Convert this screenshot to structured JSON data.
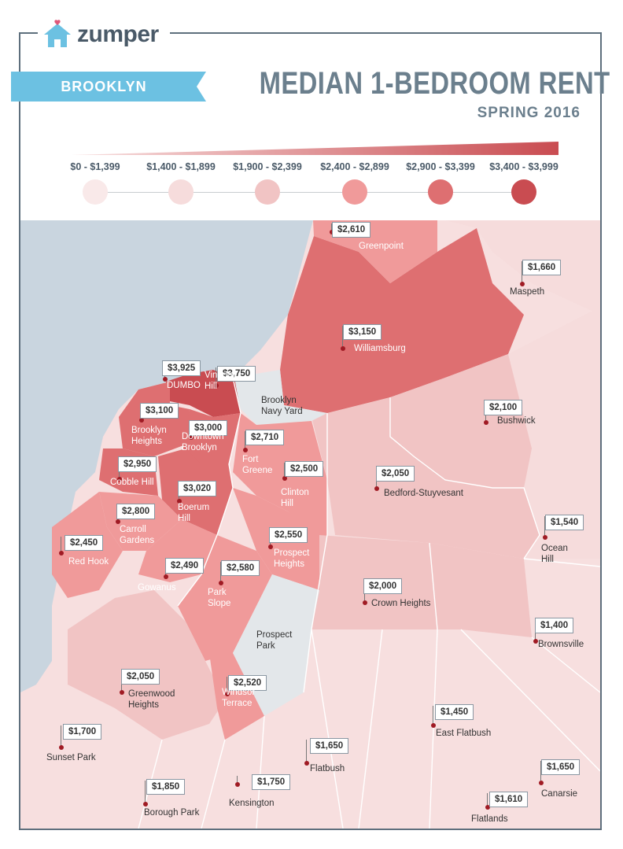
{
  "brand": {
    "name": "zumper"
  },
  "borough": "BROOKLYN",
  "title": "MEDIAN 1-BEDROOM RENT",
  "subtitle": "SPRING 2016",
  "colors": {
    "frame": "#5e6f7d",
    "ribbon": "#6cc1e2",
    "water": "#c9d5df",
    "park": "#e3e7ea",
    "title": "#6b7f8d"
  },
  "legend": [
    {
      "label": "$0 - $1,399",
      "color": "#f9e9e9"
    },
    {
      "label": "$1,400 - $1,899",
      "color": "#f6dcdc"
    },
    {
      "label": "$1,900 - $2,399",
      "color": "#f1c4c4"
    },
    {
      "label": "$2,400 - $2,899",
      "color": "#f09a9a"
    },
    {
      "label": "$2,900 - $3,399",
      "color": "#de6f71"
    },
    {
      "label": "$3,400 - $3,999",
      "color": "#c94c51"
    }
  ],
  "neighborhoods": [
    {
      "id": "greenpoint",
      "name": "Greenpoint",
      "price": "$2,610"
    },
    {
      "id": "maspeth",
      "name": "Maspeth",
      "price": "$1,660"
    },
    {
      "id": "williamsburg",
      "name": "Williamsburg",
      "price": "$3,150"
    },
    {
      "id": "dumbo",
      "name": "DUMBO",
      "price": "$3,925"
    },
    {
      "id": "vinegar-hill",
      "name": "Vinegar\nHill",
      "price": "$3,750"
    },
    {
      "id": "brooklyn-navy-yard",
      "name": "Brooklyn\nNavy Yard",
      "price": ""
    },
    {
      "id": "bushwick",
      "name": "Bushwick",
      "price": "$2,100"
    },
    {
      "id": "brooklyn-heights",
      "name": "Brooklyn\nHeights",
      "price": "$3,100"
    },
    {
      "id": "downtown-brooklyn",
      "name": "Downtown\nBrooklyn",
      "price": "$3,000"
    },
    {
      "id": "fort-greene",
      "name": "Fort\nGreene",
      "price": "$2,710"
    },
    {
      "id": "clinton-hill",
      "name": "Clinton\nHill",
      "price": "$2,500"
    },
    {
      "id": "bedford-stuyvesant",
      "name": "Bedford-Stuyvesant",
      "price": "$2,050"
    },
    {
      "id": "cobble-hill",
      "name": "Cobble Hill",
      "price": "$2,950"
    },
    {
      "id": "boerum-hill",
      "name": "Boerum\nHill",
      "price": "$3,020"
    },
    {
      "id": "carroll-gardens",
      "name": "Carroll\nGardens",
      "price": "$2,800"
    },
    {
      "id": "ocean-hill",
      "name": "Ocean\nHill",
      "price": "$1,540"
    },
    {
      "id": "red-hook",
      "name": "Red Hook",
      "price": "$2,450"
    },
    {
      "id": "prospect-heights",
      "name": "Prospect\nHeights",
      "price": "$2,550"
    },
    {
      "id": "gowanus",
      "name": "Gowanus",
      "price": "$2,490"
    },
    {
      "id": "park-slope",
      "name": "Park\nSlope",
      "price": "$2,580"
    },
    {
      "id": "crown-heights",
      "name": "Crown Heights",
      "price": "$2,000"
    },
    {
      "id": "brownsville",
      "name": "Brownsville",
      "price": "$1,400"
    },
    {
      "id": "prospect-park",
      "name": "Prospect\nPark",
      "price": ""
    },
    {
      "id": "greenwood-heights",
      "name": "Greenwood\nHeights",
      "price": "$2,050"
    },
    {
      "id": "windsor-terrace",
      "name": "Windsor\nTerrace",
      "price": "$2,520"
    },
    {
      "id": "east-flatbush",
      "name": "East Flatbush",
      "price": "$1,450"
    },
    {
      "id": "sunset-park",
      "name": "Sunset Park",
      "price": "$1,700"
    },
    {
      "id": "flatbush",
      "name": "Flatbush",
      "price": "$1,650"
    },
    {
      "id": "canarsie",
      "name": "Canarsie",
      "price": "$1,650"
    },
    {
      "id": "borough-park",
      "name": "Borough Park",
      "price": "$1,850"
    },
    {
      "id": "kensington",
      "name": "Kensington",
      "price": "$1,750"
    },
    {
      "id": "flatlands",
      "name": "Flatlands",
      "price": "$1,610"
    }
  ]
}
